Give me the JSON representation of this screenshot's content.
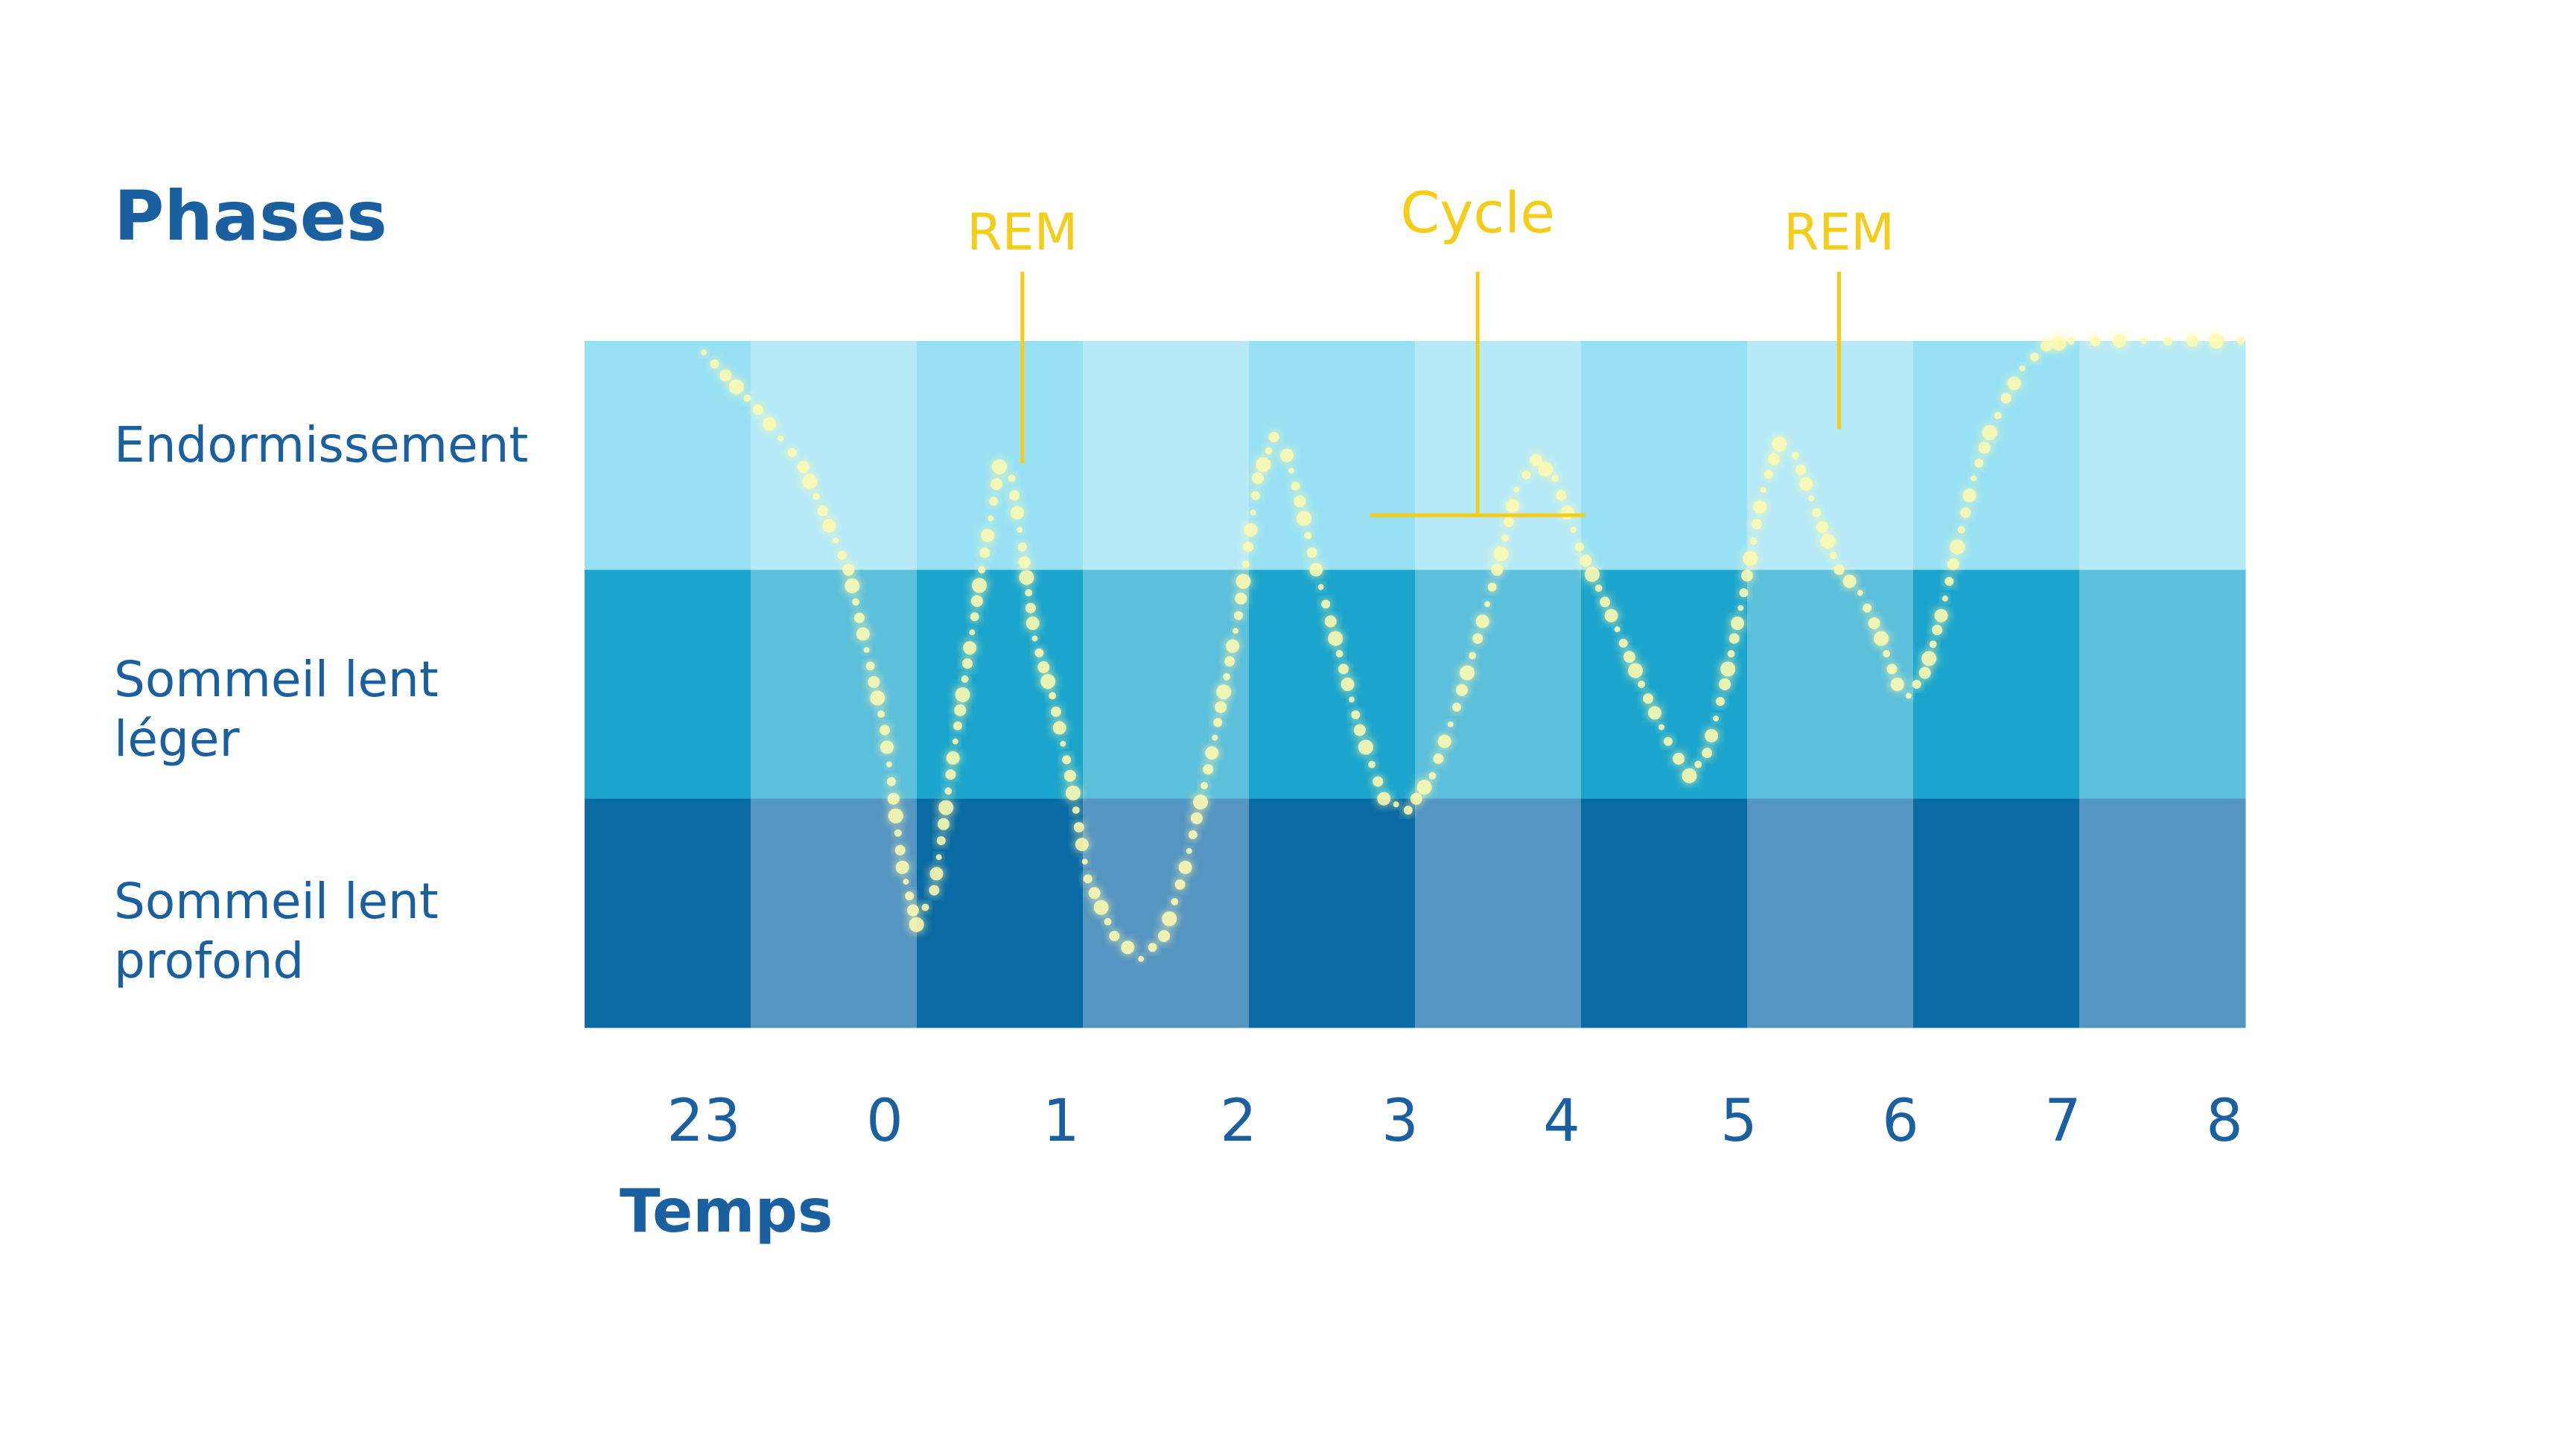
{
  "chart_data": {
    "type": "line",
    "title": "",
    "ylabel": "Phases",
    "xlabel": "Temps",
    "x_ticks": [
      "23",
      "0",
      "1",
      "2",
      "3",
      "4",
      "5",
      "6",
      "7",
      "8"
    ],
    "y_categories": [
      "Endormissement",
      "Sommeil lent léger",
      "Sommeil lent profond"
    ],
    "y_category_lines": [
      [
        "Endormissement"
      ],
      [
        "Sommeil lent",
        "léger"
      ],
      [
        "Sommeil lent",
        "profond"
      ]
    ],
    "y_scale": "0 = Endormissement (top), 3 = bottom of Sommeil lent profond",
    "x_range": [
      -1.5,
      8.3
    ],
    "y_range": [
      0,
      3
    ],
    "grid": false,
    "series": [
      {
        "x": [
          -1.0,
          -0.7,
          -0.45,
          -0.2,
          0.0,
          0.1,
          0.18,
          0.28,
          0.4,
          0.55,
          0.65,
          0.72,
          0.78,
          0.85,
          0.95,
          1.05,
          1.15,
          1.3,
          1.45,
          1.58,
          1.7,
          1.85,
          2.0,
          2.12,
          2.22,
          2.3,
          2.38,
          2.48,
          2.6,
          2.75,
          2.9,
          3.05,
          3.2,
          3.35,
          3.48,
          3.6,
          3.72,
          3.84,
          3.96,
          4.1,
          4.28,
          4.45,
          4.6,
          4.72,
          4.82,
          4.92,
          5.03,
          5.15,
          5.25,
          5.35,
          5.48,
          5.62,
          5.75,
          5.88,
          5.98,
          6.05,
          6.15,
          6.25,
          6.35,
          6.45,
          6.55,
          6.65,
          6.75,
          6.9,
          7.05,
          7.2,
          7.35,
          7.5,
          7.65,
          7.8,
          7.95,
          8.1
        ],
        "y": [
          0.05,
          0.3,
          0.55,
          1.0,
          1.7,
          2.3,
          2.55,
          2.4,
          1.75,
          1.0,
          0.55,
          0.6,
          0.9,
          1.3,
          1.55,
          1.9,
          2.35,
          2.6,
          2.7,
          2.6,
          2.3,
          1.8,
          1.2,
          0.6,
          0.42,
          0.5,
          0.7,
          1.0,
          1.3,
          1.7,
          2.0,
          2.05,
          1.9,
          1.6,
          1.3,
          1.0,
          0.65,
          0.52,
          0.6,
          0.9,
          1.2,
          1.5,
          1.75,
          1.9,
          1.8,
          1.5,
          1.1,
          0.65,
          0.45,
          0.5,
          0.75,
          1.0,
          1.1,
          1.3,
          1.5,
          1.55,
          1.45,
          1.2,
          0.9,
          0.6,
          0.4,
          0.25,
          0.12,
          0.02,
          0.0,
          0.0,
          0.0,
          0.0,
          0.0,
          0.0,
          0.0,
          0.0
        ]
      }
    ],
    "annotations": [
      {
        "label": "REM",
        "x": 0.78,
        "y": 0.6
      },
      {
        "label": "Cycle",
        "x_start": 3.0,
        "x_end": 3.96
      },
      {
        "label": "REM",
        "x": 5.62,
        "y": 0.45
      }
    ],
    "colors": {
      "band_top_dark": "#98e1f4",
      "band_top_light": "#b6eaf7",
      "band_mid_dark": "#1ba5cc",
      "band_mid_light": "#5cbfdb",
      "band_bottom_dark": "#0a6ba4",
      "band_bottom_light": "#5595c1",
      "label_blue": "#1a5fa0",
      "accent_yellow": "#f5cc17",
      "curve": "#fffbb0"
    }
  }
}
